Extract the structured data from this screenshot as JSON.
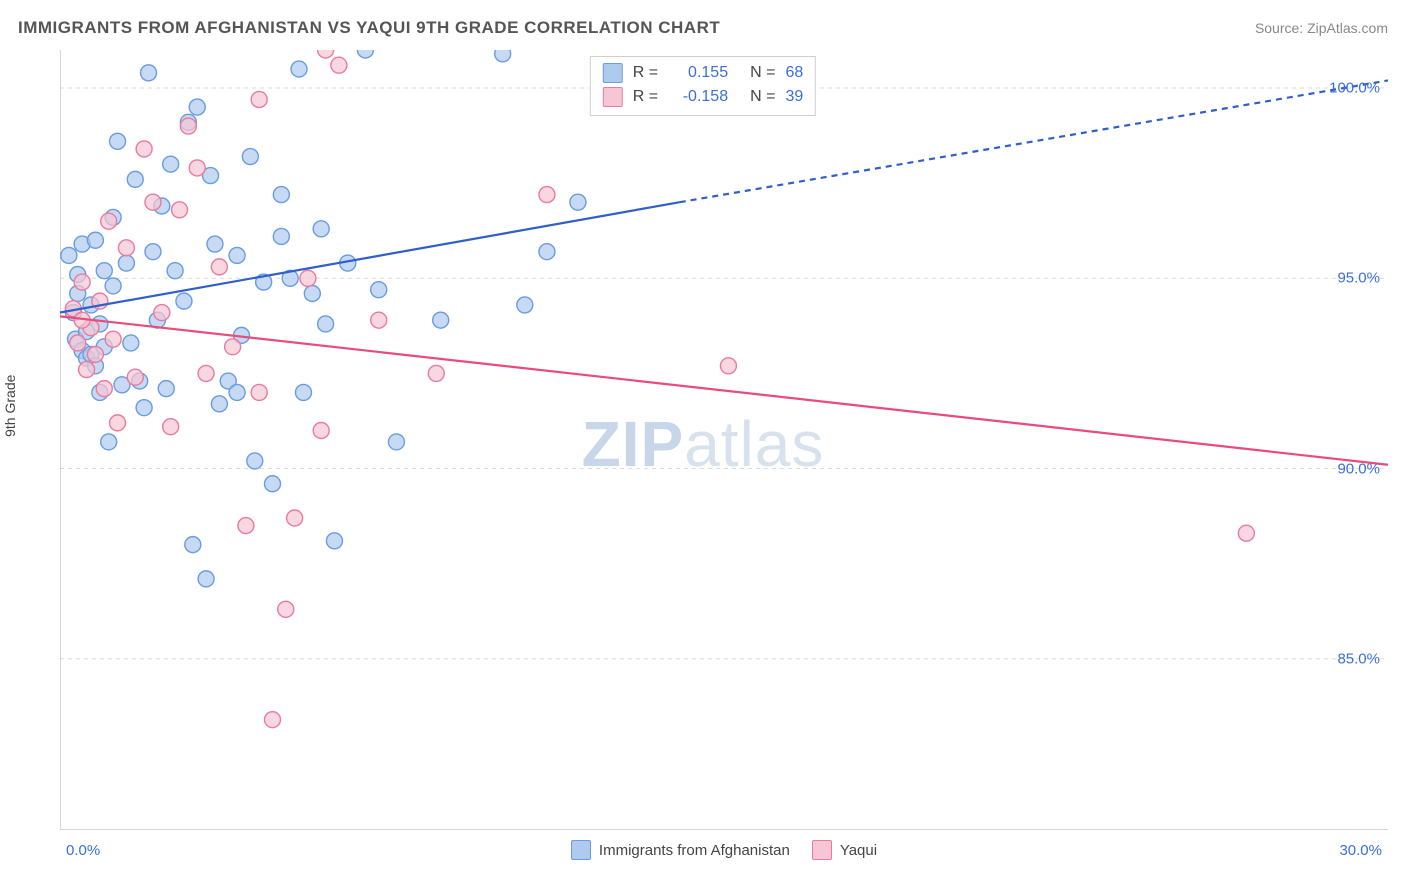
{
  "title": "IMMIGRANTS FROM AFGHANISTAN VS YAQUI 9TH GRADE CORRELATION CHART",
  "source_label": "Source: ZipAtlas.com",
  "ylabel": "9th Grade",
  "watermark": {
    "bold": "ZIP",
    "rest": "atlas"
  },
  "chart": {
    "type": "scatter",
    "background_color": "#ffffff",
    "grid_color": "#dcdcdc",
    "axis_color": "#bfbfbf",
    "tick_label_color": "#3b6fd6",
    "xlim": [
      0,
      30
    ],
    "ylim": [
      80.5,
      101
    ],
    "y_ticks": [
      85,
      90,
      95,
      100
    ],
    "y_tick_labels": [
      "85.0%",
      "90.0%",
      "95.0%",
      "100.0%"
    ],
    "x_ticks": [
      0,
      3.33,
      6.67,
      10,
      13.33,
      16.67,
      20,
      23.33,
      26.67,
      30
    ],
    "x_tick_labels_visible": [
      "0.0%",
      "30.0%"
    ],
    "marker_radius": 8,
    "marker_stroke_width": 1.4,
    "line_width_regression": 2.2,
    "legend_box_border": "#cfcfcf",
    "series": [
      {
        "name": "Immigrants from Afghanistan",
        "color_fill": "#aecbef",
        "color_stroke": "#6a9ce0",
        "line_color": "#2f5fc9",
        "R": "0.155",
        "N": "68",
        "regression": {
          "x1": 0,
          "y1": 94.1,
          "x2": 14,
          "y2": 97.0,
          "dash_from_x": 14,
          "dash_to_x": 30,
          "dash_to_y": 100.2
        },
        "points": [
          [
            0.2,
            95.6
          ],
          [
            0.3,
            94.1
          ],
          [
            0.35,
            93.4
          ],
          [
            0.4,
            94.6
          ],
          [
            0.4,
            95.1
          ],
          [
            0.5,
            93.1
          ],
          [
            0.5,
            95.9
          ],
          [
            0.6,
            93.6
          ],
          [
            0.6,
            92.9
          ],
          [
            0.7,
            93.0
          ],
          [
            0.7,
            94.3
          ],
          [
            0.8,
            96.0
          ],
          [
            0.8,
            92.7
          ],
          [
            0.9,
            93.8
          ],
          [
            0.9,
            92.0
          ],
          [
            1.0,
            95.2
          ],
          [
            1.0,
            93.2
          ],
          [
            1.1,
            90.7
          ],
          [
            1.2,
            94.8
          ],
          [
            1.2,
            96.6
          ],
          [
            1.3,
            98.6
          ],
          [
            1.4,
            92.2
          ],
          [
            1.5,
            95.4
          ],
          [
            1.6,
            93.3
          ],
          [
            1.7,
            97.6
          ],
          [
            1.8,
            92.3
          ],
          [
            1.9,
            91.6
          ],
          [
            2.0,
            100.4
          ],
          [
            2.1,
            95.7
          ],
          [
            2.2,
            93.9
          ],
          [
            2.3,
            96.9
          ],
          [
            2.4,
            92.1
          ],
          [
            2.5,
            98.0
          ],
          [
            2.6,
            95.2
          ],
          [
            2.8,
            94.4
          ],
          [
            2.9,
            99.1
          ],
          [
            3.0,
            88.0
          ],
          [
            3.1,
            99.5
          ],
          [
            3.3,
            87.1
          ],
          [
            3.4,
            97.7
          ],
          [
            3.5,
            95.9
          ],
          [
            3.6,
            91.7
          ],
          [
            3.8,
            92.3
          ],
          [
            4.0,
            95.6
          ],
          [
            4.1,
            93.5
          ],
          [
            4.3,
            98.2
          ],
          [
            4.4,
            90.2
          ],
          [
            4.6,
            94.9
          ],
          [
            4.8,
            89.6
          ],
          [
            5.0,
            96.1
          ],
          [
            5.2,
            95.0
          ],
          [
            5.4,
            100.5
          ],
          [
            5.5,
            92.0
          ],
          [
            5.7,
            94.6
          ],
          [
            5.9,
            96.3
          ],
          [
            6.0,
            93.8
          ],
          [
            6.2,
            88.1
          ],
          [
            6.5,
            95.4
          ],
          [
            6.9,
            101.0
          ],
          [
            7.2,
            94.7
          ],
          [
            7.6,
            90.7
          ],
          [
            8.6,
            93.9
          ],
          [
            10.0,
            100.9
          ],
          [
            10.5,
            94.3
          ],
          [
            11.0,
            95.7
          ],
          [
            11.7,
            97.0
          ],
          [
            5.0,
            97.2
          ],
          [
            4.0,
            92.0
          ]
        ]
      },
      {
        "name": "Yaqui",
        "color_fill": "#f7c6d4",
        "color_stroke": "#e97ba0",
        "line_color": "#e94b7a",
        "R": "-0.158",
        "N": "39",
        "regression": {
          "x1": 0,
          "y1": 94.0,
          "x2": 30,
          "y2": 90.1,
          "dash_from_x": 30,
          "dash_to_x": 30,
          "dash_to_y": 90.1
        },
        "points": [
          [
            0.3,
            94.2
          ],
          [
            0.4,
            93.3
          ],
          [
            0.5,
            94.9
          ],
          [
            0.6,
            92.6
          ],
          [
            0.7,
            93.7
          ],
          [
            0.8,
            93.0
          ],
          [
            0.9,
            94.4
          ],
          [
            1.0,
            92.1
          ],
          [
            1.1,
            96.5
          ],
          [
            1.2,
            93.4
          ],
          [
            1.3,
            91.2
          ],
          [
            1.5,
            95.8
          ],
          [
            1.7,
            92.4
          ],
          [
            1.9,
            98.4
          ],
          [
            2.1,
            97.0
          ],
          [
            2.3,
            94.1
          ],
          [
            2.5,
            91.1
          ],
          [
            2.7,
            96.8
          ],
          [
            2.9,
            99.0
          ],
          [
            3.1,
            97.9
          ],
          [
            3.3,
            92.5
          ],
          [
            3.6,
            95.3
          ],
          [
            3.9,
            93.2
          ],
          [
            4.2,
            88.5
          ],
          [
            4.5,
            99.7
          ],
          [
            4.8,
            83.4
          ],
          [
            5.1,
            86.3
          ],
          [
            5.3,
            88.7
          ],
          [
            5.6,
            95.0
          ],
          [
            5.9,
            91.0
          ],
          [
            6.3,
            100.6
          ],
          [
            7.2,
            93.9
          ],
          [
            8.5,
            92.5
          ],
          [
            11.0,
            97.2
          ],
          [
            15.1,
            92.7
          ],
          [
            26.8,
            88.3
          ],
          [
            6.0,
            101.0
          ],
          [
            4.5,
            92.0
          ],
          [
            0.5,
            93.9
          ]
        ]
      }
    ],
    "bottom_legend": [
      {
        "label": "Immigrants from Afghanistan",
        "fill": "#aecbef",
        "stroke": "#6a9ce0"
      },
      {
        "label": "Yaqui",
        "fill": "#f7c6d4",
        "stroke": "#e97ba0"
      }
    ]
  }
}
